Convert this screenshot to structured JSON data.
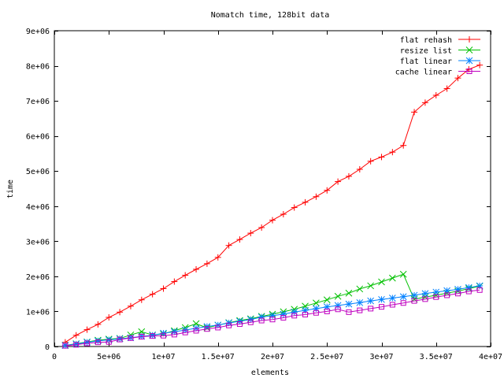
{
  "chart_data": {
    "type": "line",
    "title": "Nomatch time, 128bit data",
    "xlabel": "elements",
    "ylabel": "time",
    "xlim": [
      0,
      40000000
    ],
    "ylim": [
      0,
      9000000
    ],
    "x_ticks": [
      {
        "value": 0,
        "label": "0"
      },
      {
        "value": 5000000,
        "label": "5e+06"
      },
      {
        "value": 10000000,
        "label": "1e+07"
      },
      {
        "value": 15000000,
        "label": "1.5e+07"
      },
      {
        "value": 20000000,
        "label": "2e+07"
      },
      {
        "value": 25000000,
        "label": "2.5e+07"
      },
      {
        "value": 30000000,
        "label": "3e+07"
      },
      {
        "value": 35000000,
        "label": "3.5e+07"
      },
      {
        "value": 40000000,
        "label": "4e+07"
      }
    ],
    "y_ticks": [
      {
        "value": 0,
        "label": "0"
      },
      {
        "value": 1000000,
        "label": "1e+06"
      },
      {
        "value": 2000000,
        "label": "2e+06"
      },
      {
        "value": 3000000,
        "label": "3e+06"
      },
      {
        "value": 4000000,
        "label": "4e+06"
      },
      {
        "value": 5000000,
        "label": "5e+06"
      },
      {
        "value": 6000000,
        "label": "6e+06"
      },
      {
        "value": 7000000,
        "label": "7e+06"
      },
      {
        "value": 8000000,
        "label": "8e+06"
      },
      {
        "value": 9000000,
        "label": "9e+06"
      }
    ],
    "grid": false,
    "legend_position": "top-right",
    "x": [
      1000000,
      2000000,
      3000000,
      4000000,
      5000000,
      6000000,
      7000000,
      8000000,
      9000000,
      10000000,
      11000000,
      12000000,
      13000000,
      14000000,
      15000000,
      16000000,
      17000000,
      18000000,
      19000000,
      20000000,
      21000000,
      22000000,
      23000000,
      24000000,
      25000000,
      26000000,
      27000000,
      28000000,
      29000000,
      30000000,
      31000000,
      32000000,
      33000000,
      34000000,
      35000000,
      36000000,
      37000000,
      38000000,
      39000000
    ],
    "series": [
      {
        "name": "flat rehash",
        "color": "#ff0000",
        "marker": "plus",
        "values": [
          120000,
          320000,
          480000,
          630000,
          830000,
          980000,
          1150000,
          1330000,
          1490000,
          1650000,
          1850000,
          2030000,
          2200000,
          2360000,
          2540000,
          2880000,
          3050000,
          3230000,
          3390000,
          3600000,
          3770000,
          3960000,
          4110000,
          4270000,
          4450000,
          4700000,
          4850000,
          5050000,
          5280000,
          5400000,
          5540000,
          5730000,
          6680000,
          6950000,
          7160000,
          7350000,
          7650000,
          7900000,
          8020000
        ]
      },
      {
        "name": "resize list",
        "color": "#00c000",
        "marker": "cross",
        "values": [
          30000,
          80000,
          130000,
          180000,
          210000,
          230000,
          330000,
          420000,
          330000,
          360000,
          450000,
          540000,
          650000,
          530000,
          610000,
          680000,
          740000,
          790000,
          860000,
          920000,
          990000,
          1060000,
          1150000,
          1240000,
          1330000,
          1430000,
          1520000,
          1640000,
          1730000,
          1840000,
          1950000,
          2060000,
          1350000,
          1410000,
          1460000,
          1520000,
          1580000,
          1650000,
          1720000
        ]
      },
      {
        "name": "flat linear",
        "color": "#0080ff",
        "marker": "star",
        "values": [
          30000,
          70000,
          120000,
          160000,
          190000,
          220000,
          250000,
          290000,
          320000,
          380000,
          420000,
          470000,
          520000,
          570000,
          610000,
          670000,
          720000,
          770000,
          840000,
          880000,
          920000,
          980000,
          1030000,
          1080000,
          1130000,
          1170000,
          1210000,
          1250000,
          1300000,
          1340000,
          1380000,
          1420000,
          1460000,
          1510000,
          1550000,
          1590000,
          1630000,
          1680000,
          1730000
        ]
      },
      {
        "name": "cache linear",
        "color": "#c000c0",
        "marker": "square",
        "values": [
          20000,
          50000,
          90000,
          120000,
          130000,
          200000,
          240000,
          280000,
          300000,
          310000,
          340000,
          400000,
          450000,
          500000,
          540000,
          600000,
          640000,
          690000,
          740000,
          770000,
          820000,
          880000,
          910000,
          960000,
          1000000,
          1060000,
          980000,
          1030000,
          1080000,
          1130000,
          1190000,
          1240000,
          1300000,
          1350000,
          1410000,
          1460000,
          1510000,
          1570000,
          1610000
        ]
      }
    ]
  }
}
